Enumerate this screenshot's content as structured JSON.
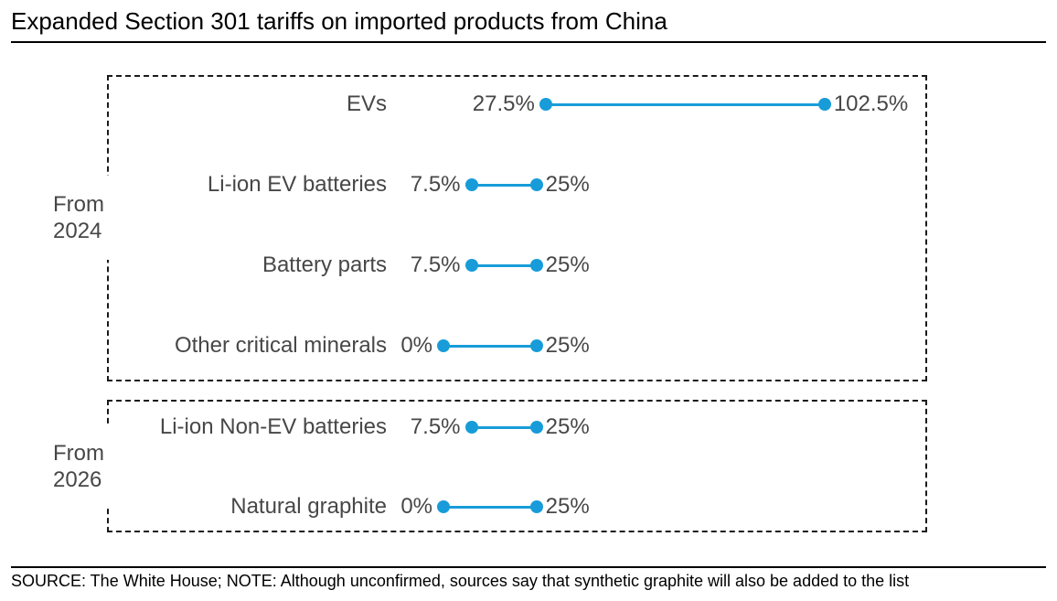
{
  "title": "Expanded Section 301 tariffs on imported products from China",
  "footer_note": "SOURCE: The White House; NOTE: Although unconfirmed, sources say that synthetic graphite will also be added to the list",
  "colors": {
    "accent": "#189CD9",
    "label_text": "#474747",
    "title_text": "#000000",
    "box_border": "#1A1A1A"
  },
  "chart_data": {
    "type": "scatter",
    "variant": "dumbbell-range",
    "unit": "percent tariff rate",
    "x_axis": {
      "visible": false,
      "implied_range_percent": [
        0,
        102.5
      ]
    },
    "legend": "none",
    "groups": [
      {
        "label": "From 2024",
        "rows": [
          {
            "category": "EVs",
            "start": 27.5,
            "end": 102.5,
            "start_label": "27.5%",
            "end_label": "102.5%"
          },
          {
            "category": "Li-ion EV batteries",
            "start": 7.5,
            "end": 25,
            "start_label": "7.5%",
            "end_label": "25%"
          },
          {
            "category": "Battery parts",
            "start": 7.5,
            "end": 25,
            "start_label": "7.5%",
            "end_label": "25%"
          },
          {
            "category": "Other critical minerals",
            "start": 0,
            "end": 25,
            "start_label": "0%",
            "end_label": "25%"
          }
        ]
      },
      {
        "label": "From 2026",
        "rows": [
          {
            "category": "Li-ion Non-EV batteries",
            "start": 7.5,
            "end": 25,
            "start_label": "7.5%",
            "end_label": "25%"
          },
          {
            "category": "Natural graphite",
            "start": 0,
            "end": 25,
            "start_label": "0%",
            "end_label": "25%"
          }
        ]
      }
    ]
  }
}
